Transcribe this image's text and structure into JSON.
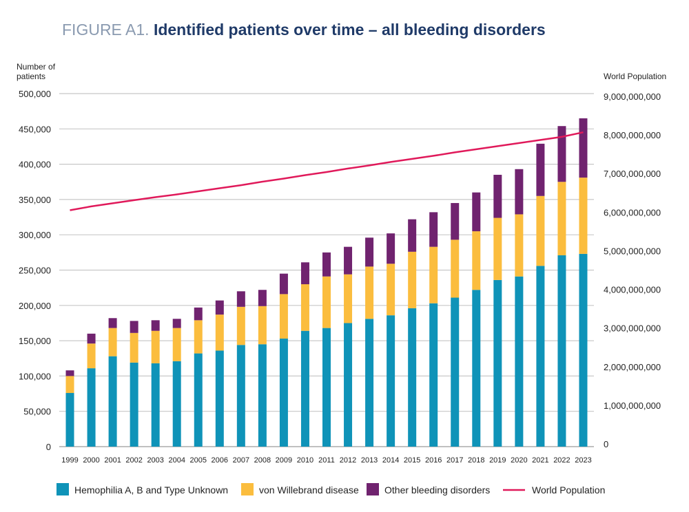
{
  "title": {
    "prefix": "FIGURE A1.",
    "main": "Identified patients over time – all bleeding disorders"
  },
  "chart_data": {
    "type": "bar",
    "stacked": true,
    "categories": [
      "1999",
      "2000",
      "2001",
      "2002",
      "2003",
      "2004",
      "2005",
      "2006",
      "2007",
      "2008",
      "2009",
      "2010",
      "2011",
      "2012",
      "2013",
      "2014",
      "2015",
      "2016",
      "2017",
      "2018",
      "2019",
      "2020",
      "2021",
      "2022",
      "2023"
    ],
    "series": [
      {
        "name": "Hemophilia A, B and Type Unknown",
        "color": "#0f93b8",
        "values": [
          76000,
          111000,
          128000,
          119000,
          118000,
          121000,
          132000,
          136000,
          144000,
          145000,
          153000,
          164000,
          168000,
          175000,
          181000,
          186000,
          196000,
          203000,
          211000,
          222000,
          236000,
          241000,
          256000,
          271000,
          273000
        ]
      },
      {
        "name": "von Willebrand disease",
        "color": "#fbbd3e",
        "values": [
          24000,
          35000,
          40000,
          42000,
          46000,
          47000,
          47000,
          51000,
          54000,
          54000,
          63000,
          66000,
          73000,
          69000,
          74000,
          73000,
          80000,
          80000,
          82000,
          83000,
          88000,
          88000,
          99000,
          104000,
          108000
        ]
      },
      {
        "name": "Other bleeding disorders",
        "color": "#70236f",
        "values": [
          8000,
          14000,
          14000,
          17000,
          15000,
          13000,
          18000,
          20000,
          22000,
          23000,
          29000,
          31000,
          34000,
          39000,
          41000,
          43000,
          46000,
          49000,
          52000,
          55000,
          61000,
          64000,
          74000,
          79000,
          84000
        ]
      }
    ],
    "line": {
      "name": "World Population",
      "color": "#e0195a",
      "axis": "right",
      "values": [
        6050000000,
        6150000000,
        6230000000,
        6310000000,
        6390000000,
        6460000000,
        6540000000,
        6620000000,
        6700000000,
        6790000000,
        6870000000,
        6960000000,
        7040000000,
        7130000000,
        7210000000,
        7300000000,
        7380000000,
        7460000000,
        7550000000,
        7630000000,
        7710000000,
        7790000000,
        7870000000,
        7950000000,
        8070000000
      ]
    },
    "ylabel_left": [
      "Number of",
      "patients"
    ],
    "ylabel_right": "World Population",
    "ylim_left": [
      0,
      500000
    ],
    "ylim_right": [
      0,
      9000000000
    ],
    "yticks_left": [
      "0",
      "50,000",
      "100,000",
      "150,000",
      "200,000",
      "250,000",
      "300,000",
      "350,000",
      "400,000",
      "450,000",
      "500,000"
    ],
    "yticks_right": [
      "0",
      "1,000,000,000",
      "2,000,000,000",
      "3,000,000,000",
      "4,000,000,000",
      "5,000,000,000",
      "6,000,000,000",
      "7,000,000,000",
      "8,000,000,000",
      "9,000,000,000"
    ],
    "grid": true,
    "legend": [
      {
        "label": "Hemophilia A, B and Type Unknown",
        "kind": "box",
        "color": "#0f93b8"
      },
      {
        "label": "von Willebrand disease",
        "kind": "box",
        "color": "#fbbd3e"
      },
      {
        "label": "Other bleeding disorders",
        "kind": "box",
        "color": "#70236f"
      },
      {
        "label": "World Population",
        "kind": "line",
        "color": "#e0195a"
      }
    ],
    "legend_position": "bottom"
  }
}
